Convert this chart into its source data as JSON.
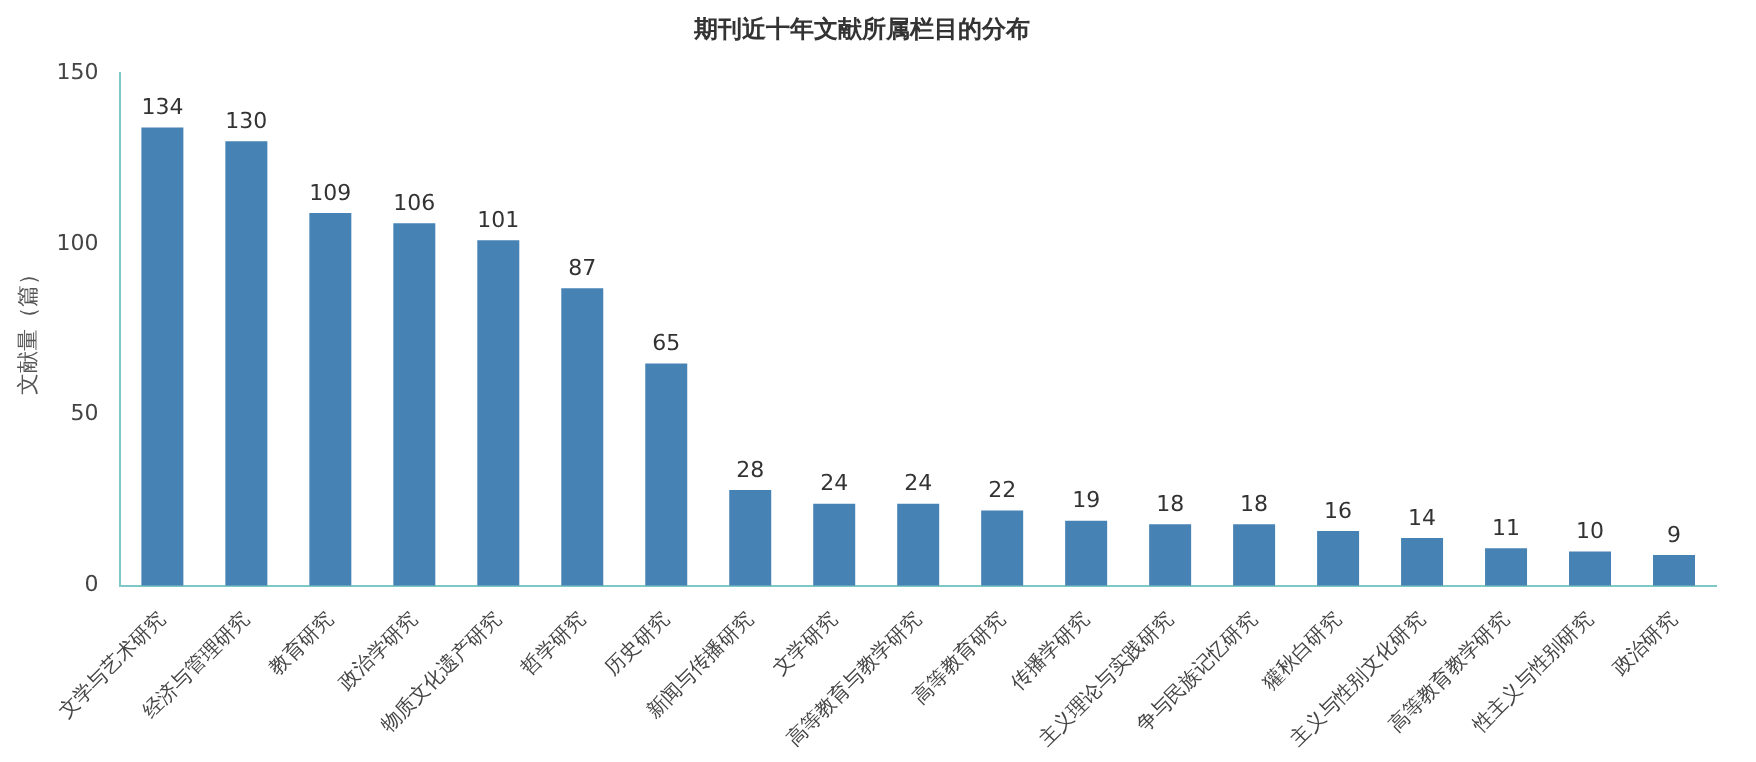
{
  "chart_data": {
    "type": "bar",
    "title": "期刊近十年文献所属栏目的分布",
    "ylabel": "文献量（篇）",
    "categories": [
      "文学与艺术研究",
      "经济与管理研究",
      "教育研究",
      "政治学研究",
      "物质文化遗产研究",
      "哲学研究",
      "历史研究",
      "新闻与传播研究",
      "文学研究",
      "高等教育与教学研究",
      "高等教育研究",
      "传播学研究",
      "主义理论与实践研究",
      "争与民族记忆研究",
      "獾秋白研究",
      "主义与性别文化研究",
      "高等教育教学研究",
      "性主义与性别研究",
      "政治研究"
    ],
    "values": [
      134,
      130,
      109,
      106,
      101,
      87,
      65,
      28,
      24,
      24,
      22,
      19,
      18,
      18,
      16,
      14,
      11,
      10,
      9
    ],
    "color": "#4682b4",
    "ylim": [
      0,
      150
    ],
    "yticks": [
      0,
      50,
      100,
      150
    ],
    "grid": false,
    "data_labels": true
  }
}
